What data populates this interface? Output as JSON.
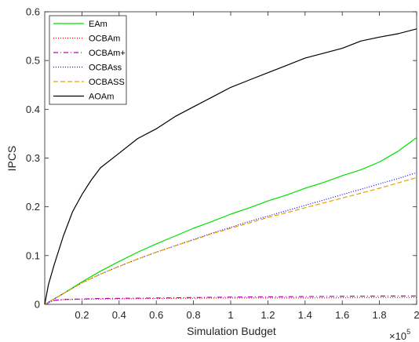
{
  "chart_data": {
    "type": "line",
    "title": "",
    "xlabel": "Simulation Budget",
    "ylabel": "IPCS",
    "x_multiplier_label": "×10",
    "x_multiplier_exponent": "5",
    "xlim": [
      0,
      2
    ],
    "ylim": [
      0,
      0.6
    ],
    "x_ticks": [
      0.2,
      0.4,
      0.6,
      0.8,
      1,
      1.2,
      1.4,
      1.6,
      1.8,
      2
    ],
    "x_tick_labels": [
      "0.2",
      "0.4",
      "0.6",
      "0.8",
      "1",
      "1.2",
      "1.4",
      "1.6",
      "1.8",
      "2"
    ],
    "y_ticks": [
      0,
      0.1,
      0.2,
      0.3,
      0.4,
      0.5,
      0.6
    ],
    "y_tick_labels": [
      "0",
      "0.1",
      "0.2",
      "0.3",
      "0.4",
      "0.5",
      "0.6"
    ],
    "grid": false,
    "legend_position": "top-left",
    "series": [
      {
        "name": "EAm",
        "color": "#00e000",
        "dash": "solid",
        "x": [
          0,
          0.1,
          0.2,
          0.3,
          0.4,
          0.5,
          0.6,
          0.7,
          0.8,
          0.9,
          1.0,
          1.1,
          1.2,
          1.3,
          1.4,
          1.5,
          1.6,
          1.7,
          1.8,
          1.9,
          2.0
        ],
        "y": [
          0,
          0.022,
          0.046,
          0.068,
          0.088,
          0.107,
          0.124,
          0.14,
          0.156,
          0.17,
          0.185,
          0.198,
          0.212,
          0.224,
          0.238,
          0.25,
          0.264,
          0.276,
          0.292,
          0.314,
          0.342
        ]
      },
      {
        "name": "OCBAm",
        "color": "#ff0000",
        "dash": "dotted",
        "x": [
          0,
          0.05,
          0.1,
          0.3,
          0.6,
          1.0,
          1.4,
          1.8,
          2.0
        ],
        "y": [
          0,
          0.008,
          0.01,
          0.011,
          0.012,
          0.013,
          0.013,
          0.014,
          0.014
        ]
      },
      {
        "name": "OCBAm+",
        "color": "#c000c0",
        "dash": "dashdot",
        "x": [
          0,
          0.05,
          0.1,
          0.3,
          0.6,
          1.0,
          1.4,
          1.8,
          2.0
        ],
        "y": [
          0,
          0.008,
          0.01,
          0.012,
          0.013,
          0.015,
          0.016,
          0.017,
          0.017
        ]
      },
      {
        "name": "OCBAss",
        "color": "#0000ff",
        "dash": "dotted",
        "x": [
          0,
          0.1,
          0.2,
          0.3,
          0.4,
          0.5,
          0.6,
          0.7,
          0.8,
          0.9,
          1.0,
          1.1,
          1.2,
          1.3,
          1.4,
          1.5,
          1.6,
          1.7,
          1.8,
          1.9,
          2.0
        ],
        "y": [
          0,
          0.022,
          0.044,
          0.062,
          0.078,
          0.093,
          0.107,
          0.12,
          0.133,
          0.146,
          0.158,
          0.17,
          0.181,
          0.192,
          0.203,
          0.214,
          0.225,
          0.236,
          0.247,
          0.258,
          0.27
        ]
      },
      {
        "name": "OCBASS",
        "color": "#e8a000",
        "dash": "dashed",
        "x": [
          0,
          0.1,
          0.2,
          0.3,
          0.4,
          0.5,
          0.6,
          0.7,
          0.8,
          0.9,
          1.0,
          1.1,
          1.2,
          1.3,
          1.4,
          1.5,
          1.6,
          1.7,
          1.8,
          1.9,
          2.0
        ],
        "y": [
          0,
          0.022,
          0.044,
          0.062,
          0.078,
          0.093,
          0.107,
          0.12,
          0.132,
          0.145,
          0.156,
          0.167,
          0.178,
          0.188,
          0.198,
          0.208,
          0.218,
          0.228,
          0.238,
          0.249,
          0.26
        ]
      },
      {
        "name": "AOAm",
        "color": "#000000",
        "dash": "solid",
        "x": [
          0,
          0.02,
          0.05,
          0.1,
          0.15,
          0.2,
          0.25,
          0.3,
          0.4,
          0.5,
          0.6,
          0.7,
          0.8,
          0.9,
          1.0,
          1.1,
          1.2,
          1.3,
          1.4,
          1.5,
          1.6,
          1.7,
          1.8,
          1.9,
          2.0
        ],
        "y": [
          0,
          0.04,
          0.08,
          0.14,
          0.19,
          0.225,
          0.255,
          0.28,
          0.31,
          0.34,
          0.36,
          0.385,
          0.405,
          0.425,
          0.445,
          0.46,
          0.475,
          0.49,
          0.505,
          0.515,
          0.525,
          0.54,
          0.548,
          0.555,
          0.565
        ]
      }
    ]
  }
}
